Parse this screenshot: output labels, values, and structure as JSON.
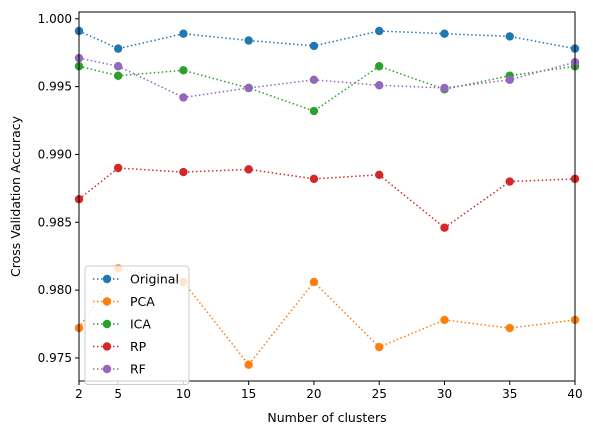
{
  "chart_data": {
    "type": "line",
    "xlabel": "Number of clusters",
    "ylabel": "Cross Validation Accuracy",
    "x": [
      2,
      5,
      10,
      15,
      20,
      25,
      30,
      35,
      40
    ],
    "xticks": [
      "2",
      "5",
      "10",
      "15",
      "20",
      "25",
      "30",
      "35",
      "40"
    ],
    "xlim": [
      2,
      40
    ],
    "yticks": [
      "0.975",
      "0.980",
      "0.985",
      "0.990",
      "0.995",
      "1.000"
    ],
    "ytick_values": [
      0.975,
      0.98,
      0.985,
      0.99,
      0.995,
      1.0
    ],
    "ylim": [
      0.9733,
      1.0005
    ],
    "grid": false,
    "legend_position": "lower-left",
    "line_style": "dotted",
    "series": [
      {
        "name": "Original",
        "color": "#1f77b4",
        "values": [
          0.9991,
          0.9978,
          0.9989,
          0.9984,
          0.998,
          0.9991,
          0.9989,
          0.9987,
          0.9978
        ]
      },
      {
        "name": "PCA",
        "color": "#ff7f0e",
        "values": [
          0.9772,
          0.9816,
          0.9806,
          0.9745,
          0.9806,
          0.9758,
          0.9778,
          0.9772,
          0.9778
        ]
      },
      {
        "name": "ICA",
        "color": "#2ca02c",
        "values": [
          0.9965,
          0.9958,
          0.9962,
          0.9949,
          0.9932,
          0.9965,
          0.9948,
          0.9958,
          0.9965
        ]
      },
      {
        "name": "RP",
        "color": "#d62728",
        "values": [
          0.9867,
          0.989,
          0.9887,
          0.9889,
          0.9882,
          0.9885,
          0.9846,
          0.988,
          0.9882
        ]
      },
      {
        "name": "RF",
        "color": "#9467bd",
        "values": [
          0.9971,
          0.9965,
          0.9942,
          0.9949,
          0.9955,
          0.9951,
          0.9949,
          0.9955,
          0.9968
        ]
      }
    ]
  }
}
